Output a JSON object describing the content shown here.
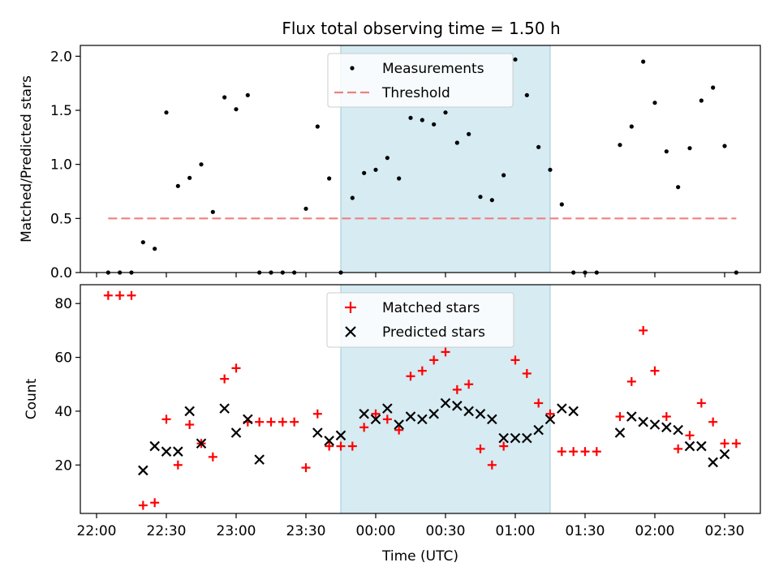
{
  "figure": {
    "title": "Flux total observing time = 1.50 h",
    "xlabel": "Time (UTC)"
  },
  "chart_data": [
    {
      "type": "scatter",
      "ylabel": "Matched/Predicted stars",
      "ylim": [
        0,
        2.1
      ],
      "yticks": [
        "0.0",
        "0.5",
        "1.0",
        "1.5",
        "2.0"
      ],
      "legend": [
        "Measurements",
        "Threshold"
      ],
      "legend_loc": "upper center",
      "highlight_span": [
        "23:45",
        "01:15"
      ],
      "threshold": 0.5,
      "measurements": [
        [
          "22:05",
          0
        ],
        [
          "22:10",
          0
        ],
        [
          "22:15",
          0
        ],
        [
          "22:20",
          0.28
        ],
        [
          "22:25",
          0.22
        ],
        [
          "22:30",
          1.48
        ],
        [
          "22:35",
          0.8
        ],
        [
          "22:40",
          0.875
        ],
        [
          "22:45",
          1.0
        ],
        [
          "22:50",
          0.56
        ],
        [
          "22:55",
          1.62
        ],
        [
          "23:00",
          1.51
        ],
        [
          "23:05",
          1.64
        ],
        [
          "23:10",
          0
        ],
        [
          "23:15",
          0
        ],
        [
          "23:20",
          0
        ],
        [
          "23:25",
          0
        ],
        [
          "23:30",
          0.59
        ],
        [
          "23:35",
          1.35
        ],
        [
          "23:40",
          0.87
        ],
        [
          "23:45",
          0
        ],
        [
          "23:50",
          0.69
        ],
        [
          "23:55",
          0.92
        ],
        [
          "00:00",
          0.95
        ],
        [
          "00:05",
          1.06
        ],
        [
          "00:10",
          0.87
        ],
        [
          "00:15",
          1.43
        ],
        [
          "00:20",
          1.41
        ],
        [
          "00:25",
          1.37
        ],
        [
          "00:30",
          1.48
        ],
        [
          "00:35",
          1.2
        ],
        [
          "00:40",
          1.28
        ],
        [
          "00:45",
          0.7
        ],
        [
          "00:50",
          0.67
        ],
        [
          "00:55",
          0.9
        ],
        [
          "01:00",
          1.97
        ],
        [
          "01:05",
          1.64
        ],
        [
          "01:10",
          1.16
        ],
        [
          "01:15",
          0.95
        ],
        [
          "01:20",
          0.63
        ],
        [
          "01:25",
          0
        ],
        [
          "01:30",
          0
        ],
        [
          "01:35",
          0
        ],
        [
          "01:45",
          1.18
        ],
        [
          "01:50",
          1.35
        ],
        [
          "01:55",
          1.95
        ],
        [
          "02:00",
          1.57
        ],
        [
          "02:05",
          1.12
        ],
        [
          "02:10",
          0.79
        ],
        [
          "02:15",
          1.15
        ],
        [
          "02:20",
          1.59
        ],
        [
          "02:25",
          1.71
        ],
        [
          "02:30",
          1.17
        ],
        [
          "02:35",
          0
        ]
      ]
    },
    {
      "type": "scatter",
      "ylabel": "Count",
      "ylim": [
        2,
        87
      ],
      "yticks": [
        "20",
        "40",
        "60",
        "80"
      ],
      "xticks": [
        "22:00",
        "22:30",
        "23:00",
        "23:30",
        "00:00",
        "00:30",
        "01:00",
        "01:30",
        "02:00",
        "02:30"
      ],
      "legend": [
        "Matched stars",
        "Predicted stars"
      ],
      "legend_loc": "upper center",
      "highlight_span": [
        "23:45",
        "01:15"
      ],
      "matched": [
        [
          "22:05",
          83
        ],
        [
          "22:10",
          83
        ],
        [
          "22:15",
          83
        ],
        [
          "22:20",
          5
        ],
        [
          "22:25",
          6
        ],
        [
          "22:30",
          37
        ],
        [
          "22:35",
          20
        ],
        [
          "22:40",
          35
        ],
        [
          "22:45",
          28
        ],
        [
          "22:50",
          23
        ],
        [
          "22:55",
          52
        ],
        [
          "23:00",
          56
        ],
        [
          "23:05",
          36
        ],
        [
          "23:10",
          36
        ],
        [
          "23:15",
          36
        ],
        [
          "23:20",
          36
        ],
        [
          "23:25",
          36
        ],
        [
          "23:30",
          19
        ],
        [
          "23:35",
          39
        ],
        [
          "23:40",
          27
        ],
        [
          "23:45",
          27
        ],
        [
          "23:50",
          27
        ],
        [
          "23:55",
          34
        ],
        [
          "00:00",
          39
        ],
        [
          "00:05",
          37
        ],
        [
          "00:10",
          33
        ],
        [
          "00:15",
          53
        ],
        [
          "00:20",
          55
        ],
        [
          "00:25",
          59
        ],
        [
          "00:30",
          62
        ],
        [
          "00:35",
          48
        ],
        [
          "00:40",
          50
        ],
        [
          "00:45",
          26
        ],
        [
          "00:50",
          20
        ],
        [
          "00:55",
          27
        ],
        [
          "01:00",
          59
        ],
        [
          "01:05",
          54
        ],
        [
          "01:10",
          43
        ],
        [
          "01:15",
          39
        ],
        [
          "01:20",
          25
        ],
        [
          "01:25",
          25
        ],
        [
          "01:30",
          25
        ],
        [
          "01:35",
          25
        ],
        [
          "01:45",
          38
        ],
        [
          "01:50",
          51
        ],
        [
          "01:55",
          70
        ],
        [
          "02:00",
          55
        ],
        [
          "02:05",
          38
        ],
        [
          "02:10",
          26
        ],
        [
          "02:15",
          31
        ],
        [
          "02:20",
          43
        ],
        [
          "02:25",
          36
        ],
        [
          "02:30",
          28
        ],
        [
          "02:35",
          28
        ]
      ],
      "predicted": [
        [
          "22:20",
          18
        ],
        [
          "22:25",
          27
        ],
        [
          "22:30",
          25
        ],
        [
          "22:35",
          25
        ],
        [
          "22:40",
          40
        ],
        [
          "22:45",
          28
        ],
        [
          "22:55",
          41
        ],
        [
          "23:00",
          32
        ],
        [
          "23:05",
          37
        ],
        [
          "23:10",
          22
        ],
        [
          "23:35",
          32
        ],
        [
          "23:40",
          29
        ],
        [
          "23:45",
          31
        ],
        [
          "23:55",
          39
        ],
        [
          "00:00",
          37
        ],
        [
          "00:05",
          41
        ],
        [
          "00:10",
          35
        ],
        [
          "00:15",
          38
        ],
        [
          "00:20",
          37
        ],
        [
          "00:25",
          39
        ],
        [
          "00:30",
          43
        ],
        [
          "00:35",
          42
        ],
        [
          "00:40",
          40
        ],
        [
          "00:45",
          39
        ],
        [
          "00:50",
          37
        ],
        [
          "00:55",
          30
        ],
        [
          "01:00",
          30
        ],
        [
          "01:05",
          30
        ],
        [
          "01:10",
          33
        ],
        [
          "01:15",
          37
        ],
        [
          "01:20",
          41
        ],
        [
          "01:25",
          40
        ],
        [
          "01:45",
          32
        ],
        [
          "01:50",
          38
        ],
        [
          "01:55",
          36
        ],
        [
          "02:00",
          35
        ],
        [
          "02:05",
          34
        ],
        [
          "02:10",
          33
        ],
        [
          "02:15",
          27
        ],
        [
          "02:20",
          27
        ],
        [
          "02:25",
          21
        ],
        [
          "02:30",
          24
        ]
      ]
    }
  ],
  "colors": {
    "measurement": "#000000",
    "threshold": "#f08080",
    "matched": "#ff0000",
    "predicted": "#000000",
    "span": "#add8e6"
  }
}
